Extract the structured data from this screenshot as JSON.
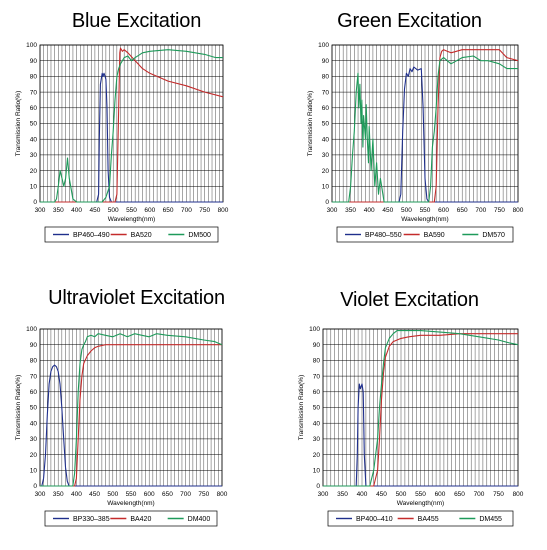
{
  "colors": {
    "excitation": "#1f2f8c",
    "barrier": "#c42b2b",
    "dichroic": "#1e9a5a",
    "grid": "#000000"
  },
  "chart_data": [
    {
      "type": "line",
      "title": "Blue Excitation",
      "xlabel": "Wavelength(nm)",
      "ylabel": "Transmission Ratio(%)",
      "xlim": [
        300,
        800
      ],
      "ylim": [
        0,
        100
      ],
      "xticks": [
        300,
        350,
        400,
        450,
        500,
        550,
        600,
        650,
        700,
        750,
        800
      ],
      "yticks": [
        0,
        10,
        20,
        30,
        40,
        50,
        60,
        70,
        80,
        90,
        100
      ],
      "grid": true,
      "legend_position": "bottom",
      "series": [
        {
          "name": "BP460–490",
          "role": "excitation",
          "x": [
            300,
            455,
            460,
            462,
            465,
            470,
            472,
            475,
            478,
            480,
            483,
            486,
            490,
            495,
            800
          ],
          "y": [
            0,
            0,
            5,
            40,
            75,
            82,
            80,
            82,
            80,
            78,
            60,
            20,
            3,
            0,
            0
          ]
        },
        {
          "name": "BA520",
          "role": "barrier",
          "x": [
            300,
            505,
            510,
            515,
            518,
            520,
            525,
            530,
            540,
            560,
            580,
            600,
            650,
            700,
            750,
            800
          ],
          "y": [
            0,
            0,
            5,
            60,
            95,
            98,
            96,
            97,
            95,
            90,
            85,
            82,
            77,
            74,
            70,
            67
          ]
        },
        {
          "name": "DM500",
          "role": "dichroic",
          "x": [
            300,
            340,
            345,
            350,
            355,
            360,
            365,
            370,
            375,
            380,
            390,
            400,
            440,
            470,
            480,
            490,
            495,
            500,
            505,
            510,
            515,
            520,
            525,
            530,
            540,
            550,
            560,
            580,
            600,
            650,
            700,
            750,
            780,
            800
          ],
          "y": [
            0,
            0,
            2,
            10,
            20,
            15,
            10,
            15,
            28,
            15,
            2,
            0,
            0,
            0,
            3,
            10,
            30,
            45,
            65,
            80,
            85,
            88,
            90,
            92,
            93,
            90,
            92,
            95,
            96,
            97,
            96,
            94,
            92,
            92
          ]
        }
      ]
    },
    {
      "type": "line",
      "title": "Green Excitation",
      "xlabel": "Wavelength(nm)",
      "ylabel": "Transmission Ratio(%)",
      "xlim": [
        300,
        800
      ],
      "ylim": [
        0,
        100
      ],
      "xticks": [
        300,
        350,
        400,
        450,
        500,
        550,
        600,
        650,
        700,
        750,
        800
      ],
      "yticks": [
        0,
        10,
        20,
        30,
        40,
        50,
        60,
        70,
        80,
        90,
        100
      ],
      "grid": true,
      "legend_position": "bottom",
      "series": [
        {
          "name": "BP480–550",
          "role": "excitation",
          "x": [
            300,
            480,
            485,
            490,
            495,
            500,
            505,
            510,
            515,
            520,
            530,
            540,
            545,
            550,
            555,
            560,
            800
          ],
          "y": [
            0,
            0,
            5,
            45,
            72,
            82,
            80,
            85,
            83,
            86,
            84,
            85,
            60,
            15,
            2,
            0,
            0
          ]
        },
        {
          "name": "BA590",
          "role": "barrier",
          "x": [
            300,
            575,
            580,
            585,
            590,
            595,
            600,
            620,
            650,
            700,
            750,
            770,
            800
          ],
          "y": [
            0,
            0,
            10,
            60,
            92,
            96,
            97,
            95,
            97,
            97,
            97,
            92,
            90
          ]
        },
        {
          "name": "DM570",
          "role": "dichroic",
          "x": [
            300,
            345,
            350,
            355,
            360,
            365,
            370,
            372,
            375,
            378,
            380,
            383,
            385,
            390,
            392,
            395,
            398,
            400,
            405,
            410,
            415,
            420,
            425,
            430,
            440,
            560,
            565,
            570,
            575,
            580,
            585,
            590,
            600,
            620,
            650,
            680,
            700,
            720,
            750,
            770,
            800
          ],
          "y": [
            0,
            0,
            10,
            30,
            45,
            70,
            82,
            60,
            75,
            50,
            65,
            35,
            55,
            40,
            62,
            40,
            25,
            48,
            20,
            40,
            10,
            25,
            5,
            15,
            0,
            0,
            10,
            35,
            45,
            60,
            80,
            90,
            92,
            88,
            92,
            93,
            90,
            90,
            88,
            85,
            85
          ]
        }
      ]
    },
    {
      "type": "line",
      "title": "Ultraviolet Excitation",
      "xlabel": "Wavelength(nm)",
      "ylabel": "Transmission Ratio(%)",
      "xlim": [
        300,
        800
      ],
      "ylim": [
        0,
        100
      ],
      "xticks": [
        300,
        350,
        400,
        450,
        500,
        550,
        600,
        650,
        700,
        750,
        800
      ],
      "yticks": [
        0,
        10,
        20,
        30,
        40,
        50,
        60,
        70,
        80,
        90,
        100
      ],
      "grid": true,
      "legend_position": "bottom",
      "series": [
        {
          "name": "BP330–385",
          "role": "excitation",
          "x": [
            300,
            305,
            310,
            315,
            320,
            325,
            330,
            335,
            340,
            345,
            350,
            355,
            360,
            365,
            370,
            375,
            380,
            800
          ],
          "y": [
            0,
            0,
            5,
            20,
            45,
            65,
            73,
            76,
            77,
            76,
            73,
            65,
            50,
            30,
            12,
            3,
            0,
            0
          ]
        },
        {
          "name": "BA420",
          "role": "barrier",
          "x": [
            300,
            395,
            400,
            405,
            410,
            415,
            420,
            430,
            440,
            450,
            460,
            480,
            500,
            550,
            600,
            700,
            800
          ],
          "y": [
            0,
            0,
            5,
            30,
            55,
            70,
            78,
            83,
            86,
            88,
            89,
            90,
            90,
            90,
            90,
            90,
            90
          ]
        },
        {
          "name": "DM400",
          "role": "dichroic",
          "x": [
            300,
            390,
            395,
            400,
            405,
            410,
            415,
            420,
            425,
            430,
            440,
            450,
            460,
            480,
            500,
            520,
            540,
            560,
            580,
            600,
            620,
            650,
            700,
            750,
            780,
            800
          ],
          "y": [
            0,
            0,
            8,
            30,
            60,
            78,
            87,
            90,
            92,
            95,
            96,
            95,
            97,
            96,
            95,
            97,
            95,
            97,
            96,
            95,
            97,
            96,
            95,
            93,
            92,
            90
          ]
        }
      ]
    },
    {
      "type": "line",
      "title": "Violet Excitation",
      "xlabel": "Wavelength(nm)",
      "ylabel": "Transmission Ratio(%)",
      "xlim": [
        300,
        800
      ],
      "ylim": [
        0,
        100
      ],
      "xticks": [
        300,
        350,
        400,
        450,
        500,
        550,
        600,
        650,
        700,
        750,
        800
      ],
      "yticks": [
        0,
        10,
        20,
        30,
        40,
        50,
        60,
        70,
        80,
        90,
        100
      ],
      "grid": true,
      "legend_position": "bottom",
      "series": [
        {
          "name": "BP400–410",
          "role": "excitation",
          "x": [
            300,
            385,
            388,
            390,
            393,
            396,
            400,
            403,
            406,
            410,
            800
          ],
          "y": [
            0,
            0,
            20,
            50,
            65,
            62,
            65,
            60,
            20,
            0,
            0
          ]
        },
        {
          "name": "BA455",
          "role": "barrier",
          "x": [
            300,
            430,
            440,
            445,
            450,
            455,
            460,
            470,
            480,
            500,
            520,
            550,
            600,
            650,
            700,
            800
          ],
          "y": [
            0,
            0,
            10,
            30,
            55,
            72,
            82,
            89,
            92,
            94,
            95,
            96,
            96,
            97,
            97,
            97
          ]
        },
        {
          "name": "DM455",
          "role": "dichroic",
          "x": [
            300,
            420,
            430,
            440,
            445,
            450,
            455,
            460,
            470,
            480,
            490,
            500,
            550,
            600,
            650,
            700,
            750,
            780,
            800
          ],
          "y": [
            0,
            0,
            10,
            30,
            50,
            65,
            78,
            88,
            94,
            97,
            99,
            99,
            99,
            98,
            97,
            95,
            93,
            91,
            90
          ]
        }
      ]
    }
  ]
}
